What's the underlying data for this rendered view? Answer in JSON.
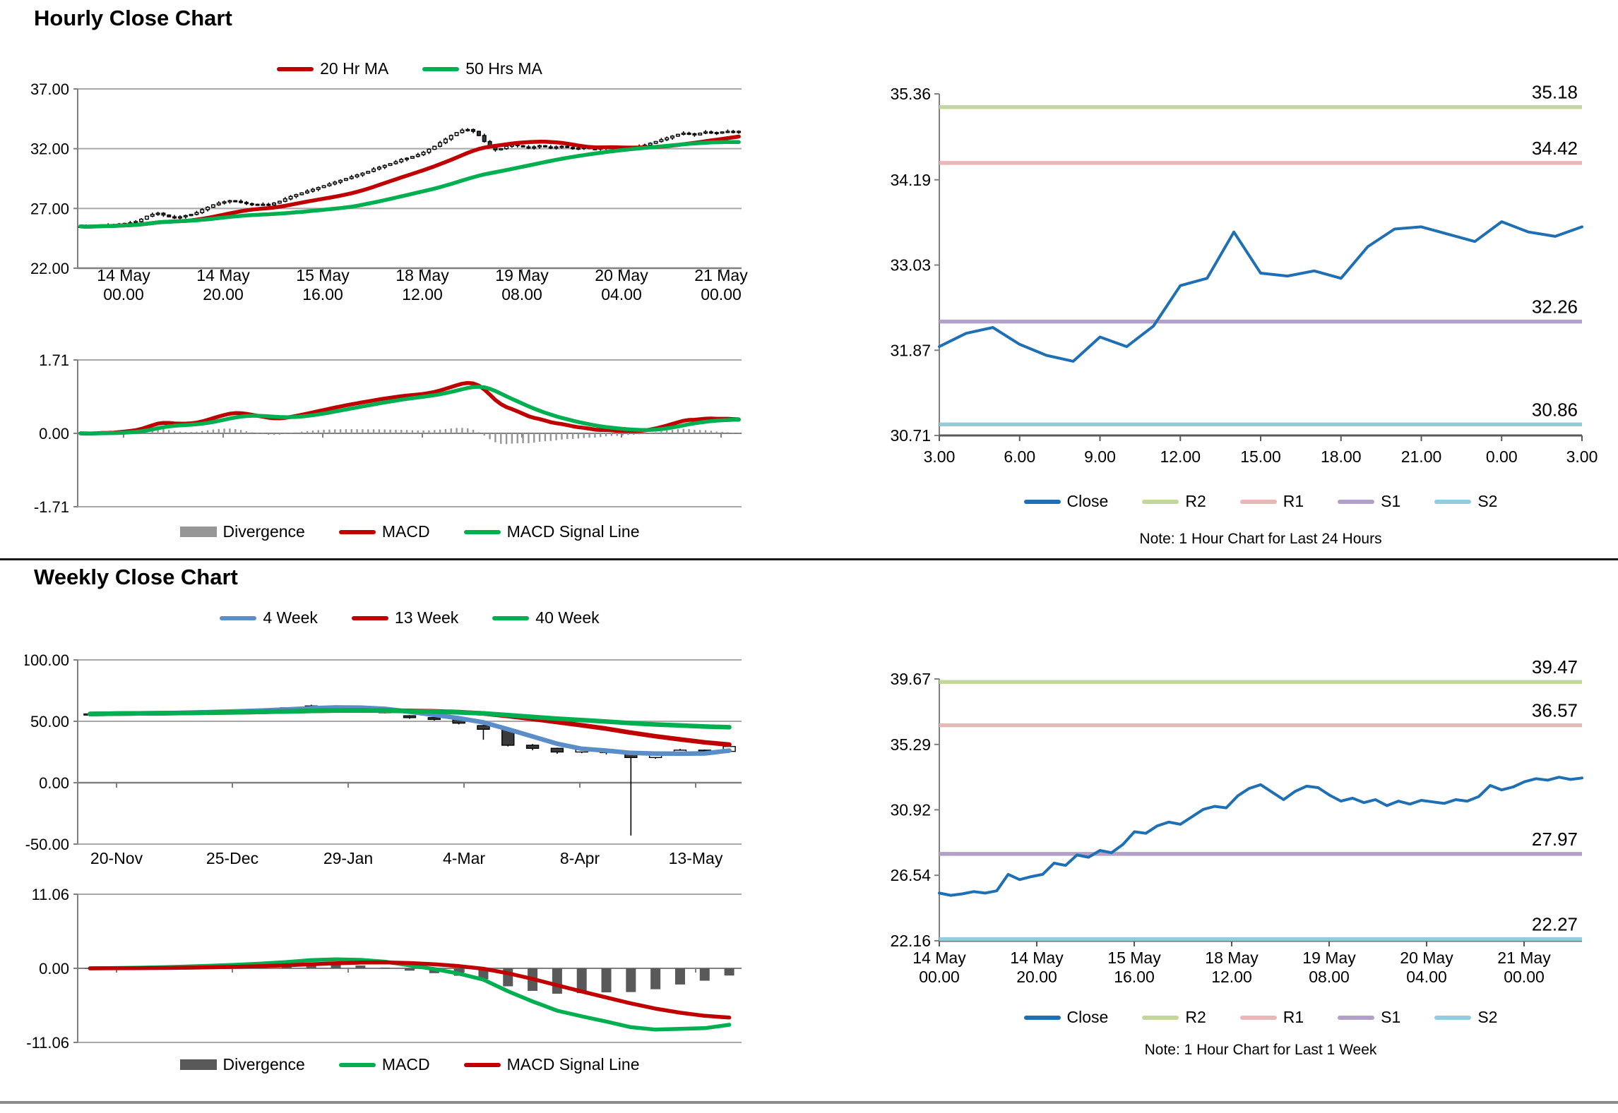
{
  "page": {
    "hourly_title": "Hourly Close Chart",
    "weekly_title": "Weekly Close Chart"
  },
  "chart_data": [
    {
      "id": "hourly-price",
      "type": "candlestick",
      "title": "Hourly Close Chart",
      "ylim": [
        22,
        37
      ],
      "yticks": [
        "37.00",
        "32.00",
        "27.00",
        "22.00"
      ],
      "xticks": [
        [
          "14 May",
          "00.00"
        ],
        [
          "14 May",
          "20.00"
        ],
        [
          "15 May",
          "16.00"
        ],
        [
          "18 May",
          "12.00"
        ],
        [
          "19 May",
          "08.00"
        ],
        [
          "20 May",
          "04.00"
        ],
        [
          "21 May",
          "00.00"
        ]
      ],
      "closes": [
        25.5,
        25.45,
        25.5,
        25.55,
        25.6,
        25.55,
        25.6,
        25.7,
        25.75,
        25.8,
        25.9,
        26.1,
        26.35,
        26.5,
        26.6,
        26.45,
        26.3,
        26.2,
        26.3,
        26.4,
        26.5,
        26.65,
        26.9,
        27.1,
        27.3,
        27.45,
        27.55,
        27.65,
        27.6,
        27.5,
        27.4,
        27.35,
        27.3,
        27.35,
        27.3,
        27.45,
        27.6,
        27.8,
        28.0,
        28.15,
        28.3,
        28.45,
        28.6,
        28.75,
        28.9,
        29.05,
        29.2,
        29.35,
        29.5,
        29.65,
        29.8,
        29.95,
        30.1,
        30.3,
        30.45,
        30.6,
        30.75,
        30.9,
        31.1,
        31.2,
        31.35,
        31.5,
        31.7,
        31.95,
        32.2,
        32.5,
        32.8,
        33.1,
        33.35,
        33.55,
        33.6,
        33.45,
        33.1,
        32.6,
        32.15,
        31.9,
        32.0,
        32.2,
        32.35,
        32.25,
        32.15,
        32.05,
        32.15,
        32.25,
        32.15,
        32.05,
        32.15,
        32.2,
        32.1,
        32.0,
        32.05,
        32.1,
        32.0,
        31.95,
        32.05,
        32.15,
        32.1,
        32.0,
        32.1,
        32.15,
        32.1,
        32.2,
        32.3,
        32.45,
        32.6,
        32.75,
        32.9,
        33.05,
        33.2,
        33.3,
        33.25,
        33.15,
        33.3,
        33.4,
        33.35,
        33.3,
        33.4,
        33.45,
        33.4,
        33.45
      ],
      "series": [
        {
          "name": "20 Hr MA",
          "window": 20,
          "color": "#C00000"
        },
        {
          "name": "50 Hrs MA",
          "window": 50,
          "color": "#00B050"
        }
      ],
      "legend": [
        {
          "label": "20 Hr MA",
          "color": "#C00000",
          "swatch": "line"
        },
        {
          "label": "50 Hrs MA",
          "color": "#00B050",
          "swatch": "line"
        }
      ]
    },
    {
      "id": "hourly-macd",
      "type": "macd",
      "source_chart": 0,
      "ylim": [
        -1.71,
        1.71
      ],
      "yticks": [
        "1.71",
        "0.00",
        "-1.71"
      ],
      "legend": [
        {
          "label": "Divergence",
          "color": "#969696",
          "swatch": "bar"
        },
        {
          "label": "MACD",
          "color": "#C00000",
          "swatch": "line"
        },
        {
          "label": "MACD Signal Line",
          "color": "#00B050",
          "swatch": "line"
        }
      ]
    },
    {
      "id": "close-last-24h",
      "type": "line-levels",
      "ylim": [
        30.71,
        35.36
      ],
      "yticks": [
        "35.36",
        "34.19",
        "33.03",
        "31.87",
        "30.71"
      ],
      "xticks": [
        "3.00",
        "6.00",
        "9.00",
        "12.00",
        "15.00",
        "18.00",
        "21.00",
        "0.00",
        "3.00"
      ],
      "close_color": "#1F6FB4",
      "close": [
        31.92,
        32.1,
        32.18,
        31.95,
        31.8,
        31.72,
        32.05,
        31.92,
        32.2,
        32.75,
        32.85,
        33.48,
        32.92,
        32.88,
        32.95,
        32.85,
        33.28,
        33.52,
        33.55,
        33.45,
        33.35,
        33.62,
        33.48,
        33.42,
        33.55
      ],
      "levels": [
        {
          "name": "R2",
          "value": 35.18,
          "label": "35.18",
          "color": "#C4D79B"
        },
        {
          "name": "R1",
          "value": 34.42,
          "label": "34.42",
          "color": "#E6B8B7"
        },
        {
          "name": "S1",
          "value": 32.26,
          "label": "32.26",
          "color": "#B1A0C7"
        },
        {
          "name": "S2",
          "value": 30.86,
          "label": "30.86",
          "color": "#92CDDC"
        }
      ],
      "legend": [
        {
          "label": "Close",
          "color": "#1F6FB4",
          "swatch": "line"
        },
        {
          "label": "R2",
          "color": "#C4D79B",
          "swatch": "line"
        },
        {
          "label": "R1",
          "color": "#E6B8B7",
          "swatch": "line"
        },
        {
          "label": "S1",
          "color": "#B1A0C7",
          "swatch": "line"
        },
        {
          "label": "S2",
          "color": "#92CDDC",
          "swatch": "line"
        }
      ],
      "note": "Note: 1 Hour Chart for Last 24 Hours"
    },
    {
      "id": "weekly-price",
      "type": "candlestick",
      "title": "Weekly Close Chart",
      "ylim": [
        -50,
        100
      ],
      "yticks": [
        "100.00",
        "50.00",
        "0.00",
        "-50.00"
      ],
      "xticks": [
        "20-Nov",
        "25-Dec",
        "29-Jan",
        "4-Mar",
        "8-Apr",
        "13-May"
      ],
      "candles": [
        [
          55.5,
          56.5,
          54.8,
          56.0
        ],
        [
          56.0,
          57.0,
          55.3,
          56.5
        ],
        [
          56.5,
          57.3,
          55.8,
          56.8
        ],
        [
          56.8,
          57.8,
          56.2,
          57.2
        ],
        [
          57.2,
          58.2,
          56.6,
          57.8
        ],
        [
          57.8,
          58.8,
          57.2,
          58.3
        ],
        [
          58.3,
          59.5,
          57.7,
          59.0
        ],
        [
          59.0,
          60.5,
          58.4,
          60.0
        ],
        [
          60.0,
          61.5,
          59.3,
          61.0
        ],
        [
          61.0,
          63.5,
          60.3,
          62.5
        ],
        [
          62.5,
          63.0,
          60.5,
          61.5
        ],
        [
          61.5,
          62.0,
          59.0,
          59.5
        ],
        [
          59.5,
          60.0,
          56.5,
          57.0
        ],
        [
          54.5,
          55.0,
          52.0,
          53.0
        ],
        [
          53.0,
          53.5,
          50.5,
          51.5
        ],
        [
          51.5,
          52.0,
          47.5,
          48.5
        ],
        [
          46.5,
          47.0,
          35.0,
          43.5
        ],
        [
          43.5,
          44.0,
          29.5,
          30.5
        ],
        [
          30.5,
          31.5,
          26.5,
          28.0
        ],
        [
          28.0,
          28.5,
          23.5,
          25.0
        ],
        [
          25.0,
          28.0,
          24.0,
          27.0
        ],
        [
          27.0,
          27.5,
          23.0,
          24.5
        ],
        [
          24.5,
          25.0,
          -43.0,
          20.5
        ],
        [
          20.5,
          24.0,
          19.5,
          23.0
        ],
        [
          23.0,
          27.5,
          22.0,
          26.5
        ],
        [
          26.5,
          27.0,
          24.0,
          25.5
        ],
        [
          25.5,
          30.5,
          25.0,
          29.5
        ]
      ],
      "series": [
        {
          "name": "4 Week",
          "window": 4,
          "color": "#5B8DC9"
        },
        {
          "name": "13 Week",
          "window": 13,
          "color": "#C00000"
        },
        {
          "name": "40 Week",
          "window": 40,
          "color": "#00B050"
        }
      ],
      "legend": [
        {
          "label": "4 Week",
          "color": "#5B8DC9",
          "swatch": "line"
        },
        {
          "label": "13 Week",
          "color": "#C00000",
          "swatch": "line"
        },
        {
          "label": "40 Week",
          "color": "#00B050",
          "swatch": "line"
        }
      ]
    },
    {
      "id": "weekly-macd",
      "type": "macd",
      "source_chart": 3,
      "ylim": [
        -11.06,
        11.06
      ],
      "yticks": [
        "11.06",
        "0.00",
        "-11.06"
      ],
      "legend": [
        {
          "label": "Divergence",
          "color": "#595959",
          "swatch": "bar"
        },
        {
          "label": "MACD",
          "color": "#00B050",
          "swatch": "line"
        },
        {
          "label": "MACD Signal Line",
          "color": "#C00000",
          "swatch": "line"
        }
      ]
    },
    {
      "id": "close-last-1w",
      "type": "line-levels",
      "ylim": [
        22.16,
        39.67
      ],
      "yticks": [
        "39.67",
        "35.29",
        "30.92",
        "26.54",
        "22.16"
      ],
      "xticks": [
        [
          "14 May",
          "00.00"
        ],
        [
          "14 May",
          "20.00"
        ],
        [
          "15 May",
          "16.00"
        ],
        [
          "18 May",
          "12.00"
        ],
        [
          "19 May",
          "08.00"
        ],
        [
          "20 May",
          "04.00"
        ],
        [
          "21 May",
          "00.00"
        ]
      ],
      "close_color": "#1F6FB4",
      "close": [
        25.35,
        25.2,
        25.3,
        25.45,
        25.35,
        25.5,
        26.6,
        26.25,
        26.45,
        26.6,
        27.35,
        27.2,
        27.9,
        27.75,
        28.2,
        28.05,
        28.6,
        29.45,
        29.35,
        29.85,
        30.1,
        29.95,
        30.45,
        30.95,
        31.15,
        31.05,
        31.85,
        32.35,
        32.6,
        32.1,
        31.6,
        32.15,
        32.5,
        32.4,
        31.9,
        31.5,
        31.7,
        31.4,
        31.6,
        31.2,
        31.5,
        31.3,
        31.55,
        31.45,
        31.35,
        31.6,
        31.5,
        31.8,
        32.55,
        32.25,
        32.45,
        32.8,
        33.0,
        32.9,
        33.1,
        32.95,
        33.05
      ],
      "levels": [
        {
          "name": "R2",
          "value": 39.47,
          "label": "39.47",
          "color": "#C4D79B"
        },
        {
          "name": "R1",
          "value": 36.57,
          "label": "36.57",
          "color": "#E6B8B7"
        },
        {
          "name": "S1",
          "value": 27.97,
          "label": "27.97",
          "color": "#B1A0C7"
        },
        {
          "name": "S2",
          "value": 22.27,
          "label": "22.27",
          "color": "#92CDDC"
        }
      ],
      "legend": [
        {
          "label": "Close",
          "color": "#1F6FB4",
          "swatch": "line"
        },
        {
          "label": "R2",
          "color": "#C4D79B",
          "swatch": "line"
        },
        {
          "label": "R1",
          "color": "#E6B8B7",
          "swatch": "line"
        },
        {
          "label": "S1",
          "color": "#B1A0C7",
          "swatch": "line"
        },
        {
          "label": "S2",
          "color": "#92CDDC",
          "swatch": "line"
        }
      ],
      "note": "Note: 1 Hour Chart for Last 1 Week"
    }
  ]
}
